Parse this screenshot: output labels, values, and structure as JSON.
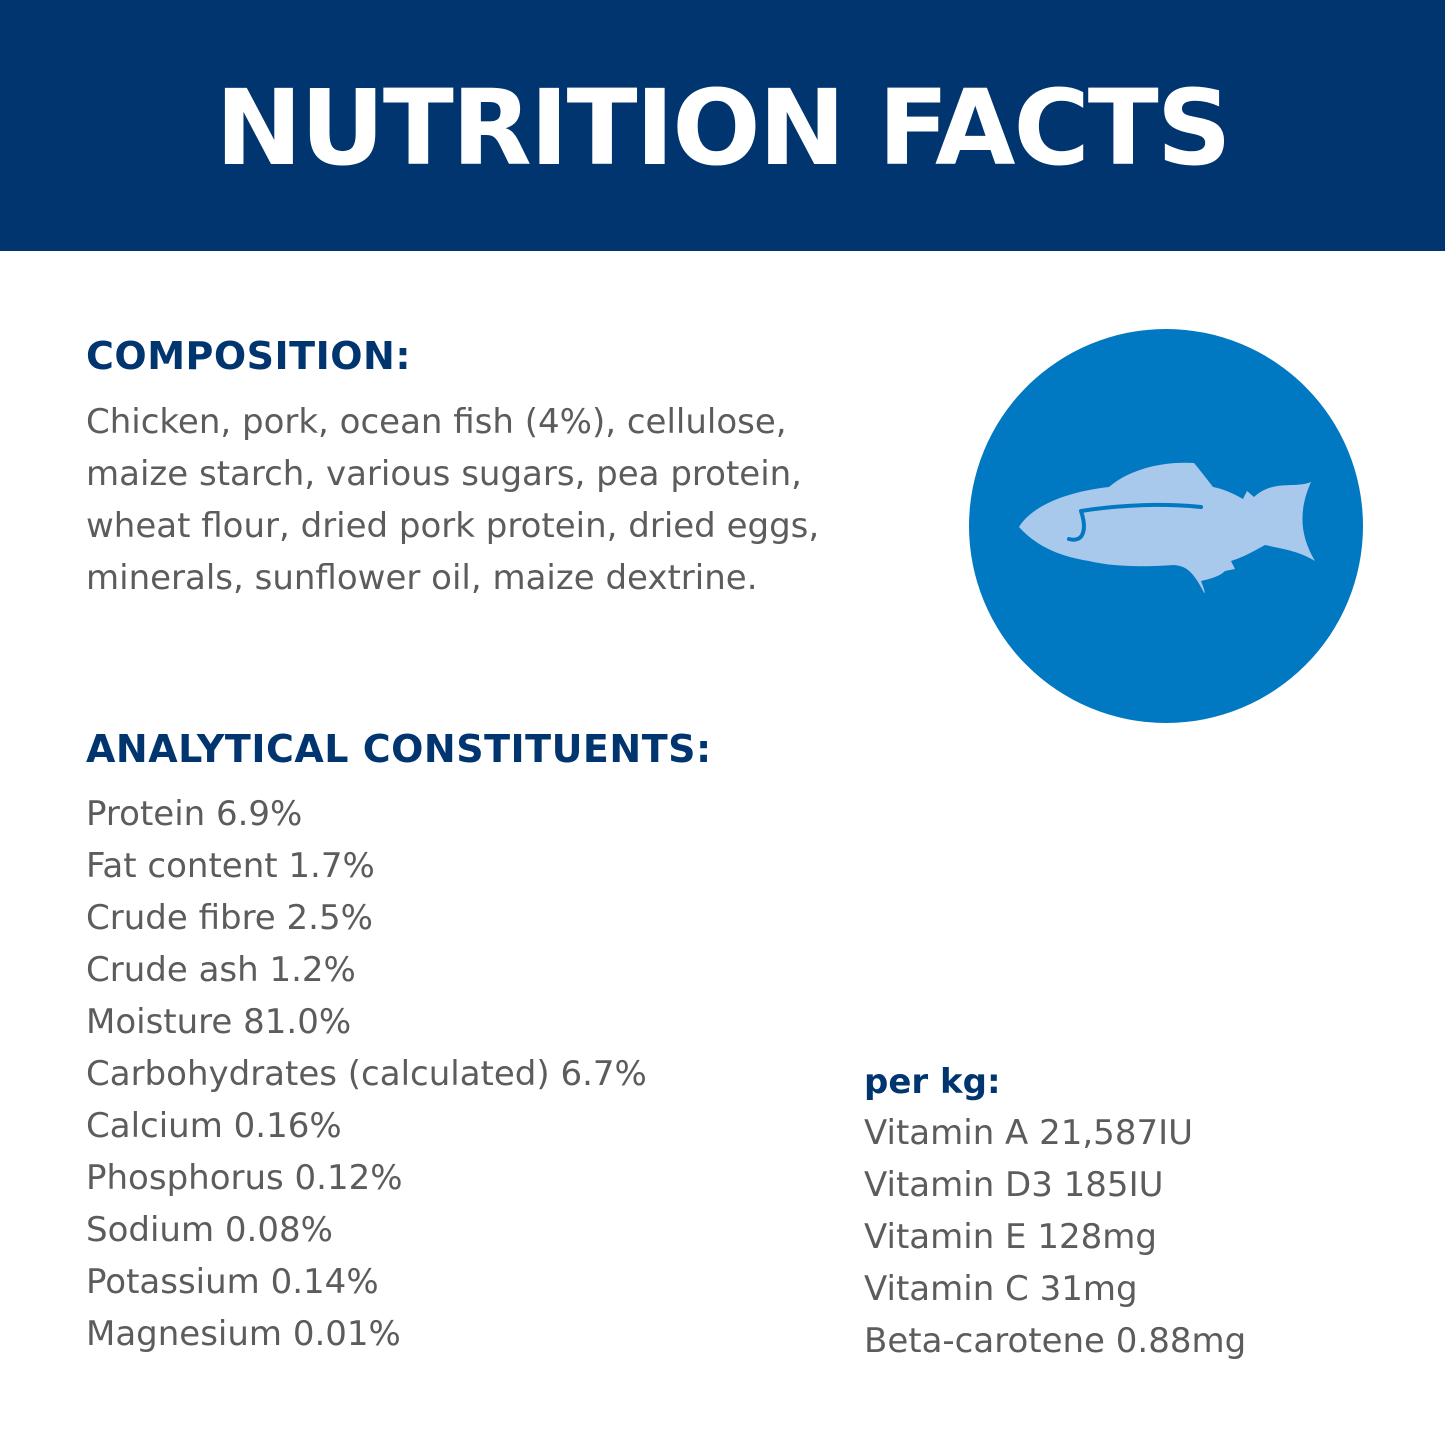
{
  "header": {
    "title": "NUTRITION FACTS"
  },
  "composition": {
    "heading": "COMPOSITION:",
    "lines": [
      "Chicken, pork, ocean fish (4%), cellulose,",
      "maize starch, various sugars, pea protein,",
      "wheat flour, dried pork protein, dried eggs,",
      "minerals, sunflower oil, maize dextrine."
    ]
  },
  "analytical": {
    "heading": "ANALYTICAL CONSTITUENTS:",
    "items": [
      "Protein 6.9%",
      "Fat content 1.7%",
      "Crude fibre 2.5%",
      "Crude ash 1.2%",
      "Moisture 81.0%",
      "Carbohydrates (calculated) 6.7%",
      "Calcium 0.16%",
      "Phosphorus 0.12%",
      "Sodium 0.08%",
      "Potassium 0.14%",
      "Magnesium 0.01%"
    ]
  },
  "per_kg": {
    "heading": "per kg:",
    "items": [
      "Vitamin A 21,587IU",
      "Vitamin D3 185IU",
      "Vitamin E 128mg",
      "Vitamin C 31mg",
      "Beta-carotene 0.88mg"
    ]
  },
  "badge": {
    "icon": "fish-icon",
    "circle_color": "#0079C2",
    "fish_color": "#A8C8EC"
  },
  "colors": {
    "banner": "#003570",
    "heading": "#003570",
    "body_text": "#5c5c5c"
  }
}
